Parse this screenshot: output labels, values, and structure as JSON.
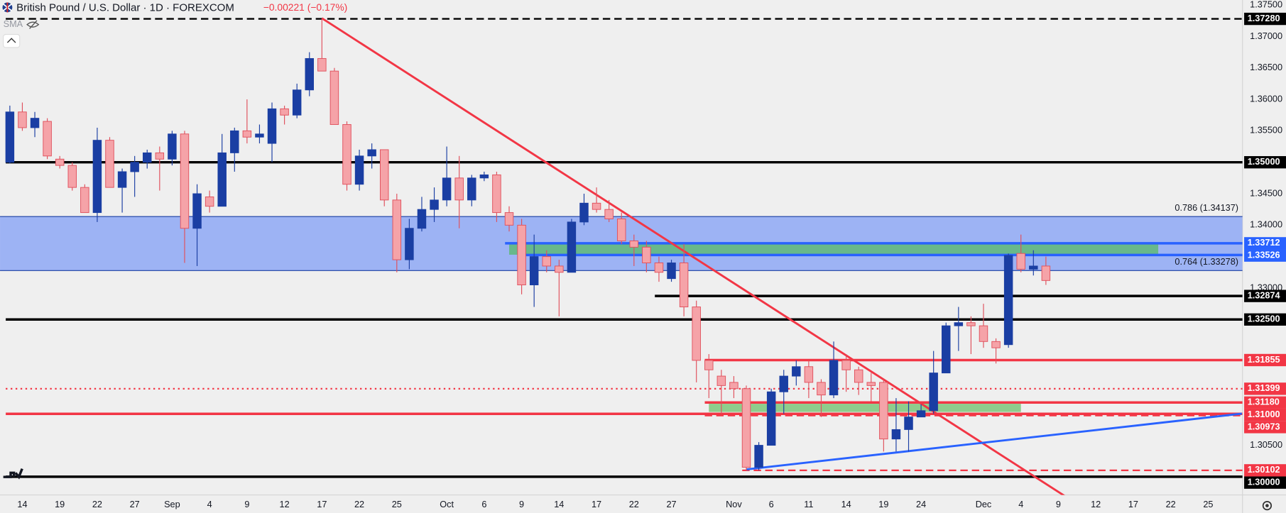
{
  "chart_data": {
    "type": "candlestick",
    "title": "British Pound / U.S. Dollar · 1D · FOREXCOM",
    "change": "−0.00221 (−0.17%)",
    "indicator": "SMA",
    "categories": [
      null,
      "14",
      null,
      null,
      "19",
      null,
      null,
      "22",
      null,
      null,
      "27",
      null,
      null,
      "Sep",
      null,
      null,
      "4",
      null,
      null,
      "9",
      null,
      null,
      "12",
      null,
      null,
      "17",
      null,
      null,
      "22",
      null,
      null,
      "25",
      null,
      null,
      null,
      "Oct",
      null,
      null,
      "6",
      null,
      null,
      "9",
      null,
      null,
      "14",
      null,
      null,
      "17",
      null,
      null,
      "22",
      null,
      null,
      "27",
      null,
      null,
      null,
      null,
      "Nov",
      null,
      null,
      "6",
      null,
      null,
      "11",
      null,
      null,
      "14",
      null,
      null,
      "19",
      null,
      null,
      "24",
      null,
      null,
      null,
      null,
      "Dec",
      null,
      null,
      "4",
      null,
      null,
      "9",
      null,
      null,
      "12",
      null,
      null,
      "17",
      null,
      null,
      "22",
      null,
      null,
      "25"
    ],
    "open": [
      1.35,
      1.358,
      1.3555,
      1.3565,
      1.3505,
      1.3495,
      1.346,
      1.342,
      1.3535,
      1.346,
      1.3485,
      1.35,
      1.3515,
      1.3505,
      1.3545,
      1.3395,
      1.3445,
      1.343,
      1.3515,
      1.355,
      1.354,
      1.353,
      1.3585,
      1.3575,
      1.3615,
      1.3665,
      1.3645,
      1.356,
      1.3465,
      1.351,
      1.352,
      1.344,
      1.3345,
      1.3395,
      1.3425,
      1.344,
      1.3475,
      1.344,
      1.3475,
      1.348,
      1.342,
      1.34,
      1.3305,
      1.335,
      1.3335,
      1.3325,
      1.3405,
      1.3435,
      1.3425,
      1.341,
      1.3375,
      1.3365,
      1.334,
      1.3315,
      1.334,
      1.327,
      1.3185,
      1.316,
      1.315,
      1.314,
      1.3015,
      1.305,
      1.3135,
      1.316,
      1.3175,
      1.315,
      1.313,
      1.3185,
      1.317,
      1.315,
      1.315,
      1.306,
      1.3075,
      1.3095,
      1.3105,
      1.3165,
      1.324,
      1.3245,
      1.324,
      1.3215,
      1.321,
      1.3355,
      1.333,
      1.3335,
      null,
      null,
      null,
      null,
      null,
      null,
      null,
      null,
      null,
      null,
      null,
      null,
      null
    ],
    "high": [
      1.359,
      1.3595,
      1.358,
      1.357,
      1.351,
      1.35,
      1.3465,
      1.3555,
      1.354,
      1.349,
      1.351,
      1.352,
      1.3525,
      1.355,
      1.355,
      1.3465,
      1.3455,
      1.3545,
      1.3555,
      1.36,
      1.356,
      1.3595,
      1.359,
      1.3625,
      1.3675,
      1.3728,
      1.365,
      1.3565,
      1.352,
      1.353,
      1.352,
      1.345,
      1.341,
      1.3445,
      1.346,
      1.3525,
      1.351,
      1.348,
      1.3485,
      1.3485,
      1.343,
      1.341,
      1.3385,
      1.336,
      1.3345,
      1.341,
      1.345,
      1.346,
      1.344,
      1.342,
      1.3385,
      1.3375,
      1.335,
      1.3345,
      1.337,
      1.328,
      1.3195,
      1.317,
      1.316,
      1.3145,
      1.3055,
      1.314,
      1.317,
      1.3185,
      1.3185,
      1.3155,
      1.3215,
      1.3195,
      1.3175,
      1.3165,
      1.3155,
      1.3125,
      1.312,
      1.3115,
      1.32,
      1.3245,
      1.327,
      1.3255,
      1.3275,
      1.322,
      1.3355,
      1.3385,
      1.336,
      1.335,
      null,
      null,
      null,
      null,
      null,
      null,
      null,
      null,
      null,
      null,
      null,
      null,
      null
    ],
    "low": [
      1.3498,
      1.355,
      1.354,
      1.3505,
      1.349,
      1.3455,
      1.342,
      1.3405,
      1.346,
      1.342,
      1.3445,
      1.349,
      1.3455,
      1.3495,
      1.334,
      1.3335,
      1.342,
      1.343,
      1.3485,
      1.353,
      1.353,
      1.35,
      1.356,
      1.357,
      1.3605,
      1.3645,
      1.356,
      1.3455,
      1.3455,
      1.349,
      1.343,
      1.3325,
      1.333,
      1.339,
      1.3405,
      1.343,
      1.3395,
      1.343,
      1.347,
      1.3405,
      1.339,
      1.329,
      1.327,
      1.3325,
      1.3255,
      1.3325,
      1.34,
      1.342,
      1.3405,
      1.337,
      1.3335,
      1.3325,
      1.331,
      1.331,
      1.3255,
      1.315,
      1.3125,
      1.31,
      1.3125,
      1.301,
      1.301,
      1.305,
      1.31,
      1.3145,
      1.3125,
      1.3095,
      1.3125,
      1.3135,
      1.313,
      1.312,
      1.304,
      1.304,
      1.304,
      1.3095,
      1.31,
      1.3165,
      1.32,
      1.3195,
      1.3205,
      1.318,
      1.3205,
      1.3325,
      1.332,
      1.3305,
      null,
      null,
      null,
      null,
      null,
      null,
      null,
      null,
      null,
      null,
      null,
      null,
      null
    ],
    "close": [
      1.358,
      1.3555,
      1.357,
      1.351,
      1.3495,
      1.346,
      1.342,
      1.3535,
      1.346,
      1.3485,
      1.35,
      1.3515,
      1.3505,
      1.3545,
      1.3395,
      1.345,
      1.343,
      1.3515,
      1.355,
      1.354,
      1.3545,
      1.3585,
      1.3575,
      1.3615,
      1.3665,
      1.3645,
      1.356,
      1.3465,
      1.351,
      1.352,
      1.344,
      1.3345,
      1.3395,
      1.3425,
      1.344,
      1.3475,
      1.344,
      1.3475,
      1.348,
      1.342,
      1.34,
      1.3305,
      1.335,
      1.3335,
      1.3325,
      1.3405,
      1.3435,
      1.3425,
      1.341,
      1.3375,
      1.3365,
      1.334,
      1.3325,
      1.334,
      1.327,
      1.3185,
      1.317,
      1.3145,
      1.314,
      1.3015,
      1.305,
      1.3135,
      1.316,
      1.3175,
      1.315,
      1.313,
      1.3185,
      1.317,
      1.315,
      1.3145,
      1.306,
      1.3075,
      1.3095,
      1.3105,
      1.3165,
      1.324,
      1.3245,
      1.324,
      1.3215,
      1.3205,
      1.3352,
      1.333,
      1.3335,
      1.3312,
      null,
      null,
      null,
      null,
      null,
      null,
      null,
      null,
      null,
      null,
      null,
      null,
      null
    ],
    "up_color": "#1a3ea3",
    "down_color": "#f5a3a8",
    "down_border": "#e0505c",
    "ylim": [
      1.2971,
      1.3758
    ],
    "yticks": [
      {
        "value": 1.375,
        "label": "1.37500"
      },
      {
        "value": 1.37,
        "label": "1.37000"
      },
      {
        "value": 1.365,
        "label": "1.36500"
      },
      {
        "value": 1.36,
        "label": "1.36000"
      },
      {
        "value": 1.355,
        "label": "1.35500"
      },
      {
        "value": 1.345,
        "label": "1.34500"
      },
      {
        "value": 1.34,
        "label": "1.34000"
      },
      {
        "value": 1.33,
        "label": "1.33000"
      },
      {
        "value": 1.305,
        "label": "1.30500"
      }
    ],
    "fib": [
      {
        "value": 1.34137,
        "label": "0.786 (1.34137)"
      },
      {
        "value": 1.33278,
        "label": "0.764 (1.33278)"
      }
    ],
    "fib_color": "#8ea8f5",
    "zones": [
      {
        "from": 1.3353,
        "to": 1.337,
        "start": 40,
        "end": 92,
        "color": "#5fb878"
      },
      {
        "from": 1.3103,
        "to": 1.3116,
        "start": 56,
        "end": 81,
        "color": "#7cc77a"
      }
    ],
    "levels": [
      {
        "value": 1.3728,
        "label": "1.37280",
        "color": "#000000",
        "style": "dashed",
        "start": 0
      },
      {
        "value": 1.35,
        "label": "1.35000",
        "color": "#000000",
        "style": "solid",
        "start": 0
      },
      {
        "value": 1.33712,
        "label": "1.33712",
        "color": "#2962ff",
        "style": "solid",
        "start": 40
      },
      {
        "value": 1.33526,
        "label": "1.33526",
        "color": "#2962ff",
        "style": "solid",
        "start": 41
      },
      {
        "value": 1.32874,
        "label": "1.32874",
        "color": "#000000",
        "style": "solid",
        "start": 52
      },
      {
        "value": 1.325,
        "label": "1.32500",
        "color": "#000000",
        "style": "solid",
        "start": 0
      },
      {
        "value": 1.31855,
        "label": "1.31855",
        "color": "#f23645",
        "style": "solid",
        "start": 56
      },
      {
        "value": 1.31399,
        "label": "1.31399",
        "color": "#f23645",
        "style": "dotted",
        "start": 0
      },
      {
        "value": 1.3118,
        "label": "1.31180",
        "color": "#f23645",
        "style": "solid",
        "start": 56
      },
      {
        "value": 1.31,
        "label": "1.31000",
        "color": "#f23645",
        "style": "solid",
        "start": 0
      },
      {
        "value": 1.30973,
        "label": "1.30973",
        "color": "#f23645",
        "style": "dashed",
        "start": 56
      },
      {
        "value": 1.30102,
        "label": "1.30102",
        "color": "#f23645",
        "style": "dashed",
        "start": 59
      },
      {
        "value": 1.3,
        "label": "1.30000",
        "color": "#000000",
        "style": "solid",
        "start": 0
      }
    ],
    "trendlines": [
      {
        "color": "#f23645",
        "points": [
          [
            25,
            1.3729
          ],
          [
            86.6,
            1.29427
          ]
        ]
      },
      {
        "color": "#2962ff",
        "points": [
          [
            59,
            1.30117
          ],
          [
            98.7,
            1.31003
          ]
        ]
      }
    ]
  }
}
